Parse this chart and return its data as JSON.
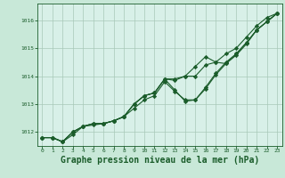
{
  "bg_color": "#c8e8d8",
  "plot_bg_color": "#d8f0e8",
  "grid_color": "#a8c8b8",
  "line_color": "#1a5c2a",
  "marker_color": "#1a5c2a",
  "title": "Graphe pression niveau de la mer (hPa)",
  "title_color": "#1a5c2a",
  "title_fontsize": 7,
  "xlim": [
    -0.5,
    23.5
  ],
  "ylim": [
    1011.5,
    1016.6
  ],
  "yticks": [
    1012,
    1013,
    1014,
    1015,
    1016
  ],
  "xticks": [
    0,
    1,
    2,
    3,
    4,
    5,
    6,
    7,
    8,
    9,
    10,
    11,
    12,
    13,
    14,
    15,
    16,
    17,
    18,
    19,
    20,
    21,
    22,
    23
  ],
  "series": [
    [
      1011.8,
      1011.8,
      1011.65,
      1011.9,
      1012.2,
      1012.25,
      1012.3,
      1012.4,
      1012.55,
      1013.0,
      1013.3,
      1013.4,
      1013.9,
      1013.5,
      1013.1,
      1013.15,
      1013.6,
      1014.1,
      1014.5,
      1014.8,
      1015.2,
      1015.65,
      1015.95,
      1016.25
    ],
    [
      1011.8,
      1011.8,
      1011.65,
      1012.0,
      1012.2,
      1012.3,
      1012.3,
      1012.4,
      1012.55,
      1013.0,
      1013.3,
      1013.4,
      1013.9,
      1013.85,
      1014.0,
      1014.35,
      1014.7,
      1014.5,
      1014.45,
      1014.8,
      1015.2,
      1015.65,
      1015.95,
      1016.25
    ],
    [
      1011.8,
      1011.8,
      1011.65,
      1012.0,
      1012.2,
      1012.3,
      1012.3,
      1012.4,
      1012.55,
      1013.0,
      1013.3,
      1013.4,
      1013.9,
      1013.9,
      1014.0,
      1014.0,
      1014.4,
      1014.5,
      1014.8,
      1015.0,
      1015.4,
      1015.8,
      1016.1,
      1016.25
    ],
    [
      1011.8,
      1011.8,
      1011.65,
      1012.0,
      1012.2,
      1012.3,
      1012.3,
      1012.4,
      1012.55,
      1012.85,
      1013.15,
      1013.3,
      1013.8,
      1013.45,
      1013.15,
      1013.15,
      1013.55,
      1014.05,
      1014.45,
      1014.75,
      1015.15,
      1015.65,
      1015.95,
      1016.25
    ]
  ]
}
